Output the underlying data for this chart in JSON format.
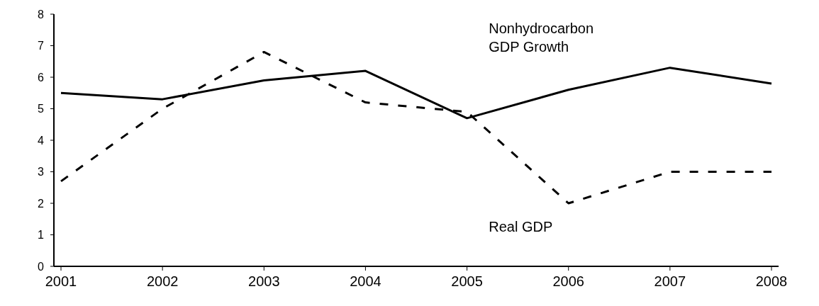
{
  "chart_data": {
    "type": "line",
    "categories": [
      "2001",
      "2002",
      "2003",
      "2004",
      "2005",
      "2006",
      "2007",
      "2008"
    ],
    "series": [
      {
        "name": "Nonhydrocarbon GDP Growth",
        "color": "#000000",
        "line_style": "solid",
        "values": [
          5.5,
          5.3,
          5.9,
          6.2,
          4.7,
          5.6,
          6.3,
          5.8
        ]
      },
      {
        "name": "Real GDP",
        "color": "#000000",
        "line_style": "dashed",
        "values": [
          2.7,
          5.0,
          6.8,
          5.2,
          4.9,
          2.0,
          3.0,
          3.0
        ]
      }
    ],
    "ylim": [
      0,
      8
    ],
    "yticks": [
      0,
      1,
      2,
      3,
      4,
      5,
      6,
      7,
      8
    ],
    "grid": false
  }
}
